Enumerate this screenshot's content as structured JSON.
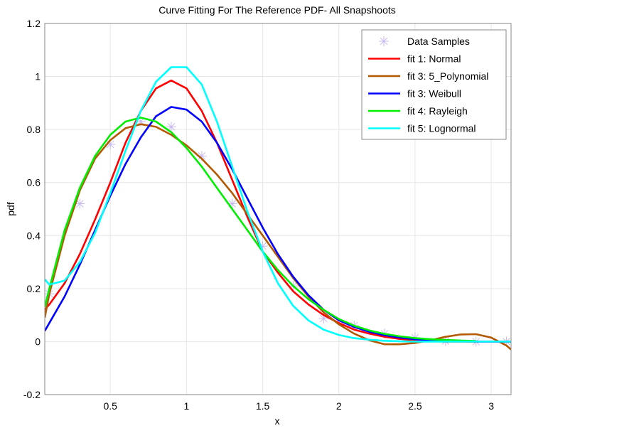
{
  "chart_data": {
    "type": "line",
    "title": "Curve Fitting For The Reference PDF- All Snapshoots",
    "xlabel": "x",
    "ylabel": "pdf",
    "xlim": [
      0.07,
      3.13
    ],
    "ylim": [
      -0.2,
      1.2
    ],
    "xticks": [
      "0.5",
      "1",
      "1.5",
      "2",
      "2.5",
      "3"
    ],
    "yticks": [
      "-0.2",
      "0",
      "0.2",
      "0.4",
      "0.6",
      "0.8",
      "1",
      "1.2"
    ],
    "grid": true,
    "legend_position": "top-right",
    "x": [
      0.07,
      0.1,
      0.2,
      0.3,
      0.4,
      0.5,
      0.6,
      0.7,
      0.8,
      0.9,
      1.0,
      1.1,
      1.2,
      1.3,
      1.4,
      1.5,
      1.6,
      1.7,
      1.8,
      1.9,
      2.0,
      2.1,
      2.2,
      2.3,
      2.4,
      2.5,
      2.6,
      2.7,
      2.8,
      2.9,
      3.0,
      3.1,
      3.13
    ],
    "samples": {
      "name": "Data Samples",
      "color": "#c8b8f0",
      "x": [
        0.1,
        0.3,
        0.5,
        0.7,
        0.9,
        1.1,
        1.3,
        1.5,
        1.7,
        1.9,
        2.1,
        2.3,
        2.5,
        2.7,
        2.9,
        3.1
      ],
      "y": [
        0.18,
        0.52,
        0.744,
        0.83,
        0.81,
        0.7,
        0.52,
        0.36,
        0.21,
        0.087,
        0.06,
        0.03,
        0.015,
        0.002,
        0.0,
        0.0
      ]
    },
    "series": [
      {
        "name": "fit 1: Normal",
        "color": "#ff0000",
        "values": [
          0.12,
          0.14,
          0.22,
          0.33,
          0.46,
          0.6,
          0.75,
          0.87,
          0.955,
          0.985,
          0.955,
          0.87,
          0.75,
          0.61,
          0.47,
          0.34,
          0.26,
          0.19,
          0.14,
          0.1,
          0.07,
          0.045,
          0.03,
          0.018,
          0.01,
          0.005,
          0.002,
          0,
          0,
          0,
          0,
          0,
          0
        ]
      },
      {
        "name": "fit 3: 5_Polynomial",
        "color": "#b35900",
        "values": [
          0.09,
          0.18,
          0.4,
          0.57,
          0.69,
          0.76,
          0.805,
          0.82,
          0.81,
          0.78,
          0.74,
          0.69,
          0.63,
          0.56,
          0.48,
          0.4,
          0.32,
          0.24,
          0.17,
          0.11,
          0.065,
          0.03,
          0.005,
          -0.01,
          -0.01,
          -0.005,
          0.005,
          0.018,
          0.027,
          0.028,
          0.015,
          -0.015,
          -0.03
        ]
      },
      {
        "name": "fit 3: Weibull",
        "color": "#0000ff",
        "values": [
          0.04,
          0.07,
          0.17,
          0.29,
          0.42,
          0.55,
          0.67,
          0.77,
          0.85,
          0.885,
          0.875,
          0.83,
          0.75,
          0.65,
          0.54,
          0.43,
          0.33,
          0.245,
          0.175,
          0.12,
          0.08,
          0.055,
          0.037,
          0.024,
          0.015,
          0.009,
          0.005,
          0.003,
          0.001,
          0,
          0,
          0,
          0
        ]
      },
      {
        "name": "fit 4: Rayleigh",
        "color": "#00ee00",
        "values": [
          0.13,
          0.2,
          0.42,
          0.58,
          0.7,
          0.78,
          0.83,
          0.845,
          0.83,
          0.79,
          0.73,
          0.66,
          0.58,
          0.5,
          0.42,
          0.34,
          0.27,
          0.21,
          0.16,
          0.12,
          0.085,
          0.06,
          0.042,
          0.029,
          0.02,
          0.013,
          0.009,
          0.006,
          0.004,
          0.002,
          null,
          null,
          null
        ]
      },
      {
        "name": "fit 5: Lognormal",
        "color": "#00ffff",
        "values": [
          0.235,
          0.215,
          0.23,
          0.3,
          0.41,
          0.56,
          0.72,
          0.87,
          0.98,
          1.035,
          1.035,
          0.97,
          0.83,
          0.66,
          0.49,
          0.34,
          0.22,
          0.135,
          0.08,
          0.045,
          0.025,
          0.013,
          0.007,
          0.003,
          0.001,
          0,
          0,
          0,
          0,
          0,
          0,
          0,
          0
        ]
      }
    ]
  }
}
